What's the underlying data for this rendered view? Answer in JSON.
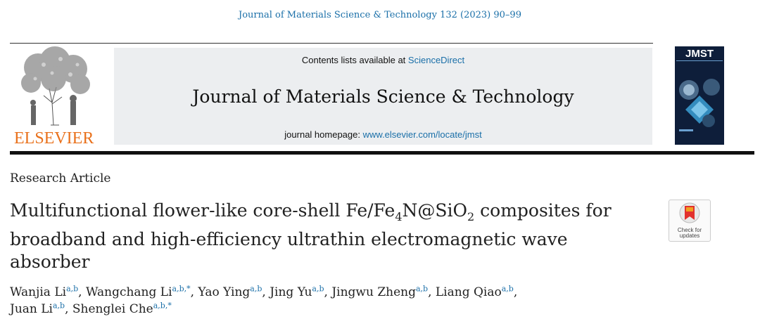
{
  "citation": "Journal of Materials Science & Technology 132 (2023) 90–99",
  "publisher": {
    "logo_word": "ELSEVIER"
  },
  "banner": {
    "contents_prefix": "Contents lists available at",
    "contents_link": "ScienceDirect",
    "journal_title": "Journal of Materials Science & Technology",
    "homepage_prefix": "journal homepage:",
    "homepage_link": "www.elsevier.com/locate/jmst"
  },
  "cover": {
    "title": "JMST"
  },
  "article": {
    "type": "Research Article",
    "title_part1": "Multifunctional flower-like core-shell Fe/Fe",
    "title_sub1": "4",
    "title_part2": "N@SiO",
    "title_sub2": "2",
    "title_part3": " composites for broadband and high-efficiency ultrathin electromagnetic wave absorber"
  },
  "badge": {
    "line1": "Check for",
    "line2": "updates"
  },
  "authors": [
    {
      "name": "Wanjia Li",
      "aff": "a,b"
    },
    {
      "name": "Wangchang Li",
      "aff": "a,b,*"
    },
    {
      "name": "Yao Ying",
      "aff": "a,b"
    },
    {
      "name": "Jing Yu",
      "aff": "a,b"
    },
    {
      "name": "Jingwu Zheng",
      "aff": "a,b"
    },
    {
      "name": "Liang Qiao",
      "aff": "a,b"
    },
    {
      "name": "Juan Li",
      "aff": "a,b"
    },
    {
      "name": "Shenglei Che",
      "aff": "a,b,*"
    }
  ],
  "colors": {
    "link": "#1a6fa8",
    "elsevier_orange": "#e9711c"
  }
}
